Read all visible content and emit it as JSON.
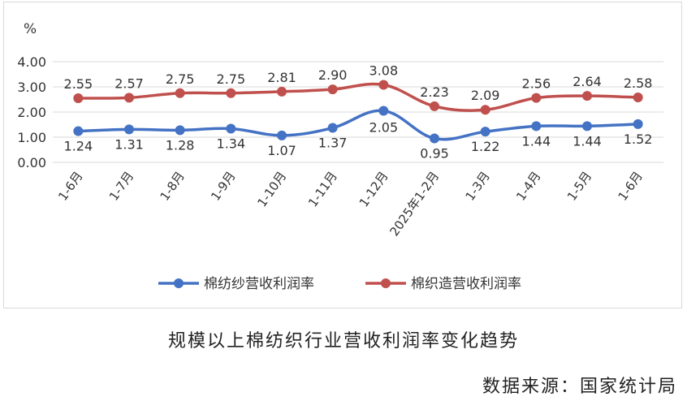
{
  "chart_data": {
    "type": "line",
    "unit_label": "%",
    "categories": [
      "1-6月",
      "1-7月",
      "1-8月",
      "1-9月",
      "1-10月",
      "1-11月",
      "1-12月",
      "2025年1-2月",
      "1-3月",
      "1-4月",
      "1-5月",
      "1-6月"
    ],
    "series": [
      {
        "name": "棉纺纱营收利润率",
        "color": "#4472c4",
        "values": [
          1.24,
          1.31,
          1.28,
          1.34,
          1.07,
          1.37,
          2.05,
          0.95,
          1.22,
          1.44,
          1.44,
          1.52
        ],
        "labels": [
          "1.24",
          "1.31",
          "1.28",
          "1.34",
          "1.07",
          "1.37",
          "2.05",
          "0.95",
          "1.22",
          "1.44",
          "1.44",
          "1.52"
        ]
      },
      {
        "name": "棉织造营收利润率",
        "color": "#c0504d",
        "values": [
          2.55,
          2.57,
          2.75,
          2.75,
          2.81,
          2.9,
          3.08,
          2.23,
          2.09,
          2.56,
          2.64,
          2.58
        ],
        "labels": [
          "2.55",
          "2.57",
          "2.75",
          "2.75",
          "2.81",
          "2.90",
          "3.08",
          "2.23",
          "2.09",
          "2.56",
          "2.64",
          "2.58"
        ]
      }
    ],
    "yticks": [
      "0.00",
      "1.00",
      "2.00",
      "3.00",
      "4.00"
    ],
    "ylim": [
      0,
      4
    ],
    "grid": true,
    "smooth": true,
    "legend_position": "bottom"
  },
  "caption": "规模以上棉纺织行业营收利润率变化趋势",
  "source": "数据来源：国家统计局"
}
